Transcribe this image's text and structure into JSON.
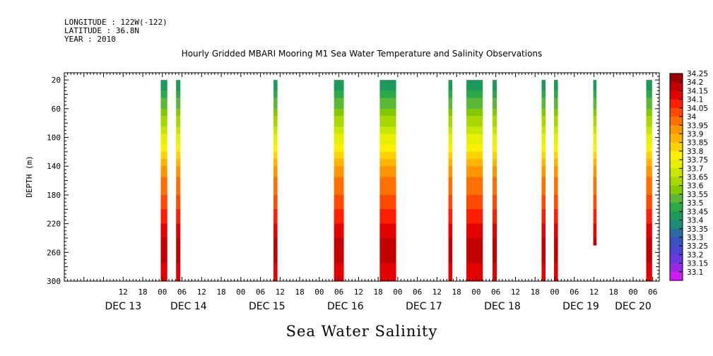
{
  "header": {
    "longitude": "LONGITUDE : 122W(-122)",
    "latitude": "LATITUDE : 36.8N",
    "year": "YEAR : 2010"
  },
  "chart_data": {
    "type": "heatmap",
    "title": "Hourly Gridded MBARI Mooring M1 Sea Water Temperature and Salinity Observations",
    "subtitle": "Sea Water Salinity",
    "ylabel": "DEPTH (m)",
    "xlabel": "",
    "ylim": [
      300,
      10
    ],
    "y_ticks": [
      20,
      60,
      100,
      140,
      180,
      220,
      260,
      300
    ],
    "x_unit": "hours from DEC 13 00:00, 2010",
    "x_range": [
      -6,
      176
    ],
    "x_hour_ticks": [
      {
        "h": 12,
        "label": "12"
      },
      {
        "h": 18,
        "label": "18"
      },
      {
        "h": 24,
        "label": "00"
      },
      {
        "h": 30,
        "label": "06"
      },
      {
        "h": 36,
        "label": "12"
      },
      {
        "h": 42,
        "label": "18"
      },
      {
        "h": 48,
        "label": "00"
      },
      {
        "h": 54,
        "label": "06"
      },
      {
        "h": 60,
        "label": "12"
      },
      {
        "h": 66,
        "label": "18"
      },
      {
        "h": 72,
        "label": "00"
      },
      {
        "h": 78,
        "label": "06"
      },
      {
        "h": 84,
        "label": "12"
      },
      {
        "h": 90,
        "label": "18"
      },
      {
        "h": 96,
        "label": "00"
      },
      {
        "h": 102,
        "label": "06"
      },
      {
        "h": 108,
        "label": "12"
      },
      {
        "h": 114,
        "label": "18"
      },
      {
        "h": 120,
        "label": "00"
      },
      {
        "h": 126,
        "label": "06"
      },
      {
        "h": 132,
        "label": "12"
      },
      {
        "h": 138,
        "label": "18"
      },
      {
        "h": 144,
        "label": "00"
      },
      {
        "h": 150,
        "label": "06"
      },
      {
        "h": 156,
        "label": "12"
      },
      {
        "h": 162,
        "label": "18"
      },
      {
        "h": 168,
        "label": "00"
      },
      {
        "h": 174,
        "label": "06"
      }
    ],
    "day_labels": [
      {
        "h": 12,
        "label": "DEC 13"
      },
      {
        "h": 32,
        "label": "DEC 14"
      },
      {
        "h": 56,
        "label": "DEC 15"
      },
      {
        "h": 80,
        "label": "DEC 16"
      },
      {
        "h": 104,
        "label": "DEC 17"
      },
      {
        "h": 128,
        "label": "DEC 18"
      },
      {
        "h": 152,
        "label": "DEC 19"
      },
      {
        "h": 168,
        "label": "DEC 20"
      }
    ],
    "colorbar": {
      "levels": [
        "34.25",
        "34.2",
        "34.15",
        "34.1",
        "34.05",
        "34",
        "33.95",
        "33.9",
        "33.85",
        "33.8",
        "33.75",
        "33.7",
        "33.65",
        "33.6",
        "33.55",
        "33.5",
        "33.45",
        "33.4",
        "33.35",
        "33.3",
        "33.25",
        "33.2",
        "33.15",
        "33.1"
      ],
      "colors": [
        "#9c0000",
        "#c20000",
        "#e20000",
        "#ff1e00",
        "#ff4a00",
        "#ff7000",
        "#ff9600",
        "#ffb400",
        "#ffd200",
        "#fff000",
        "#e6f000",
        "#c8e600",
        "#a8d800",
        "#84c800",
        "#5ab836",
        "#2ea848",
        "#1c9a5a",
        "#1f8a78",
        "#2a6aa0",
        "#3a52c0",
        "#4e44d4",
        "#6a36e0",
        "#9a26e6",
        "#cc1cf0"
      ]
    },
    "profile": [
      {
        "depth": 20,
        "value": 33.45
      },
      {
        "depth": 40,
        "value": 33.52
      },
      {
        "depth": 60,
        "value": 33.6
      },
      {
        "depth": 80,
        "value": 33.68
      },
      {
        "depth": 100,
        "value": 33.76
      },
      {
        "depth": 120,
        "value": 33.86
      },
      {
        "depth": 140,
        "value": 33.96
      },
      {
        "depth": 160,
        "value": 34.02
      },
      {
        "depth": 180,
        "value": 34.05
      },
      {
        "depth": 200,
        "value": 34.1
      },
      {
        "depth": 220,
        "value": 34.15
      },
      {
        "depth": 240,
        "value": 34.2
      },
      {
        "depth": 260,
        "value": 34.25
      },
      {
        "depth": 280,
        "value": 34.18
      },
      {
        "depth": 300,
        "value": 34.16
      }
    ],
    "observation_columns": [
      {
        "start_h": 23.5,
        "end_h": 25.5,
        "min_depth": 20,
        "max_depth": 300
      },
      {
        "start_h": 28.2,
        "end_h": 29.5,
        "min_depth": 20,
        "max_depth": 300
      },
      {
        "start_h": 58.0,
        "end_h": 59.2,
        "min_depth": 20,
        "max_depth": 300
      },
      {
        "start_h": 76.5,
        "end_h": 79.5,
        "min_depth": 20,
        "max_depth": 300
      },
      {
        "start_h": 90.5,
        "end_h": 95.5,
        "min_depth": 20,
        "max_depth": 300
      },
      {
        "start_h": 90.5,
        "end_h": 91.5,
        "min_depth": 60,
        "max_depth": 300
      },
      {
        "start_h": 111.5,
        "end_h": 112.7,
        "min_depth": 20,
        "max_depth": 300
      },
      {
        "start_h": 117.0,
        "end_h": 122.0,
        "min_depth": 20,
        "max_depth": 300
      },
      {
        "start_h": 125.0,
        "end_h": 126.3,
        "min_depth": 20,
        "max_depth": 300
      },
      {
        "start_h": 140.0,
        "end_h": 141.2,
        "min_depth": 20,
        "max_depth": 300
      },
      {
        "start_h": 143.8,
        "end_h": 145.0,
        "min_depth": 20,
        "max_depth": 300
      },
      {
        "start_h": 155.8,
        "end_h": 156.8,
        "min_depth": 20,
        "max_depth": 250
      },
      {
        "start_h": 172.0,
        "end_h": 173.8,
        "min_depth": 20,
        "max_depth": 300
      }
    ]
  }
}
